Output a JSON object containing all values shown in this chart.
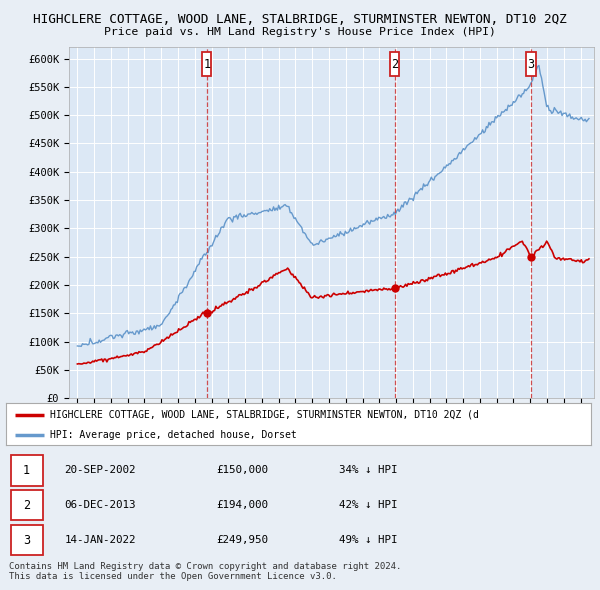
{
  "title": "HIGHCLERE COTTAGE, WOOD LANE, STALBRIDGE, STURMINSTER NEWTON, DT10 2QZ",
  "subtitle": "Price paid vs. HM Land Registry's House Price Index (HPI)",
  "background_color": "#e8eef5",
  "plot_bg_color": "#dce8f5",
  "ylim": [
    0,
    620000
  ],
  "yticks": [
    0,
    50000,
    100000,
    150000,
    200000,
    250000,
    300000,
    350000,
    400000,
    450000,
    500000,
    550000,
    600000
  ],
  "legend_label_red": "HIGHCLERE COTTAGE, WOOD LANE, STALBRIDGE, STURMINSTER NEWTON, DT10 2QZ (d",
  "legend_label_blue": "HPI: Average price, detached house, Dorset",
  "transactions": [
    {
      "num": 1,
      "date": "20-SEP-2002",
      "price": 150000,
      "pct": "34%",
      "direction": "↓",
      "year_x": 2002.72
    },
    {
      "num": 2,
      "date": "06-DEC-2013",
      "price": 194000,
      "pct": "42%",
      "direction": "↓",
      "year_x": 2013.92
    },
    {
      "num": 3,
      "date": "14-JAN-2022",
      "price": 249950,
      "pct": "49%",
      "direction": "↓",
      "year_x": 2022.04
    }
  ],
  "footer1": "Contains HM Land Registry data © Crown copyright and database right 2024.",
  "footer2": "This data is licensed under the Open Government Licence v3.0.",
  "hpi_color": "#6699cc",
  "price_color": "#cc0000",
  "box_color": "#cc2222",
  "xlim_left": 1994.5,
  "xlim_right": 2025.8
}
